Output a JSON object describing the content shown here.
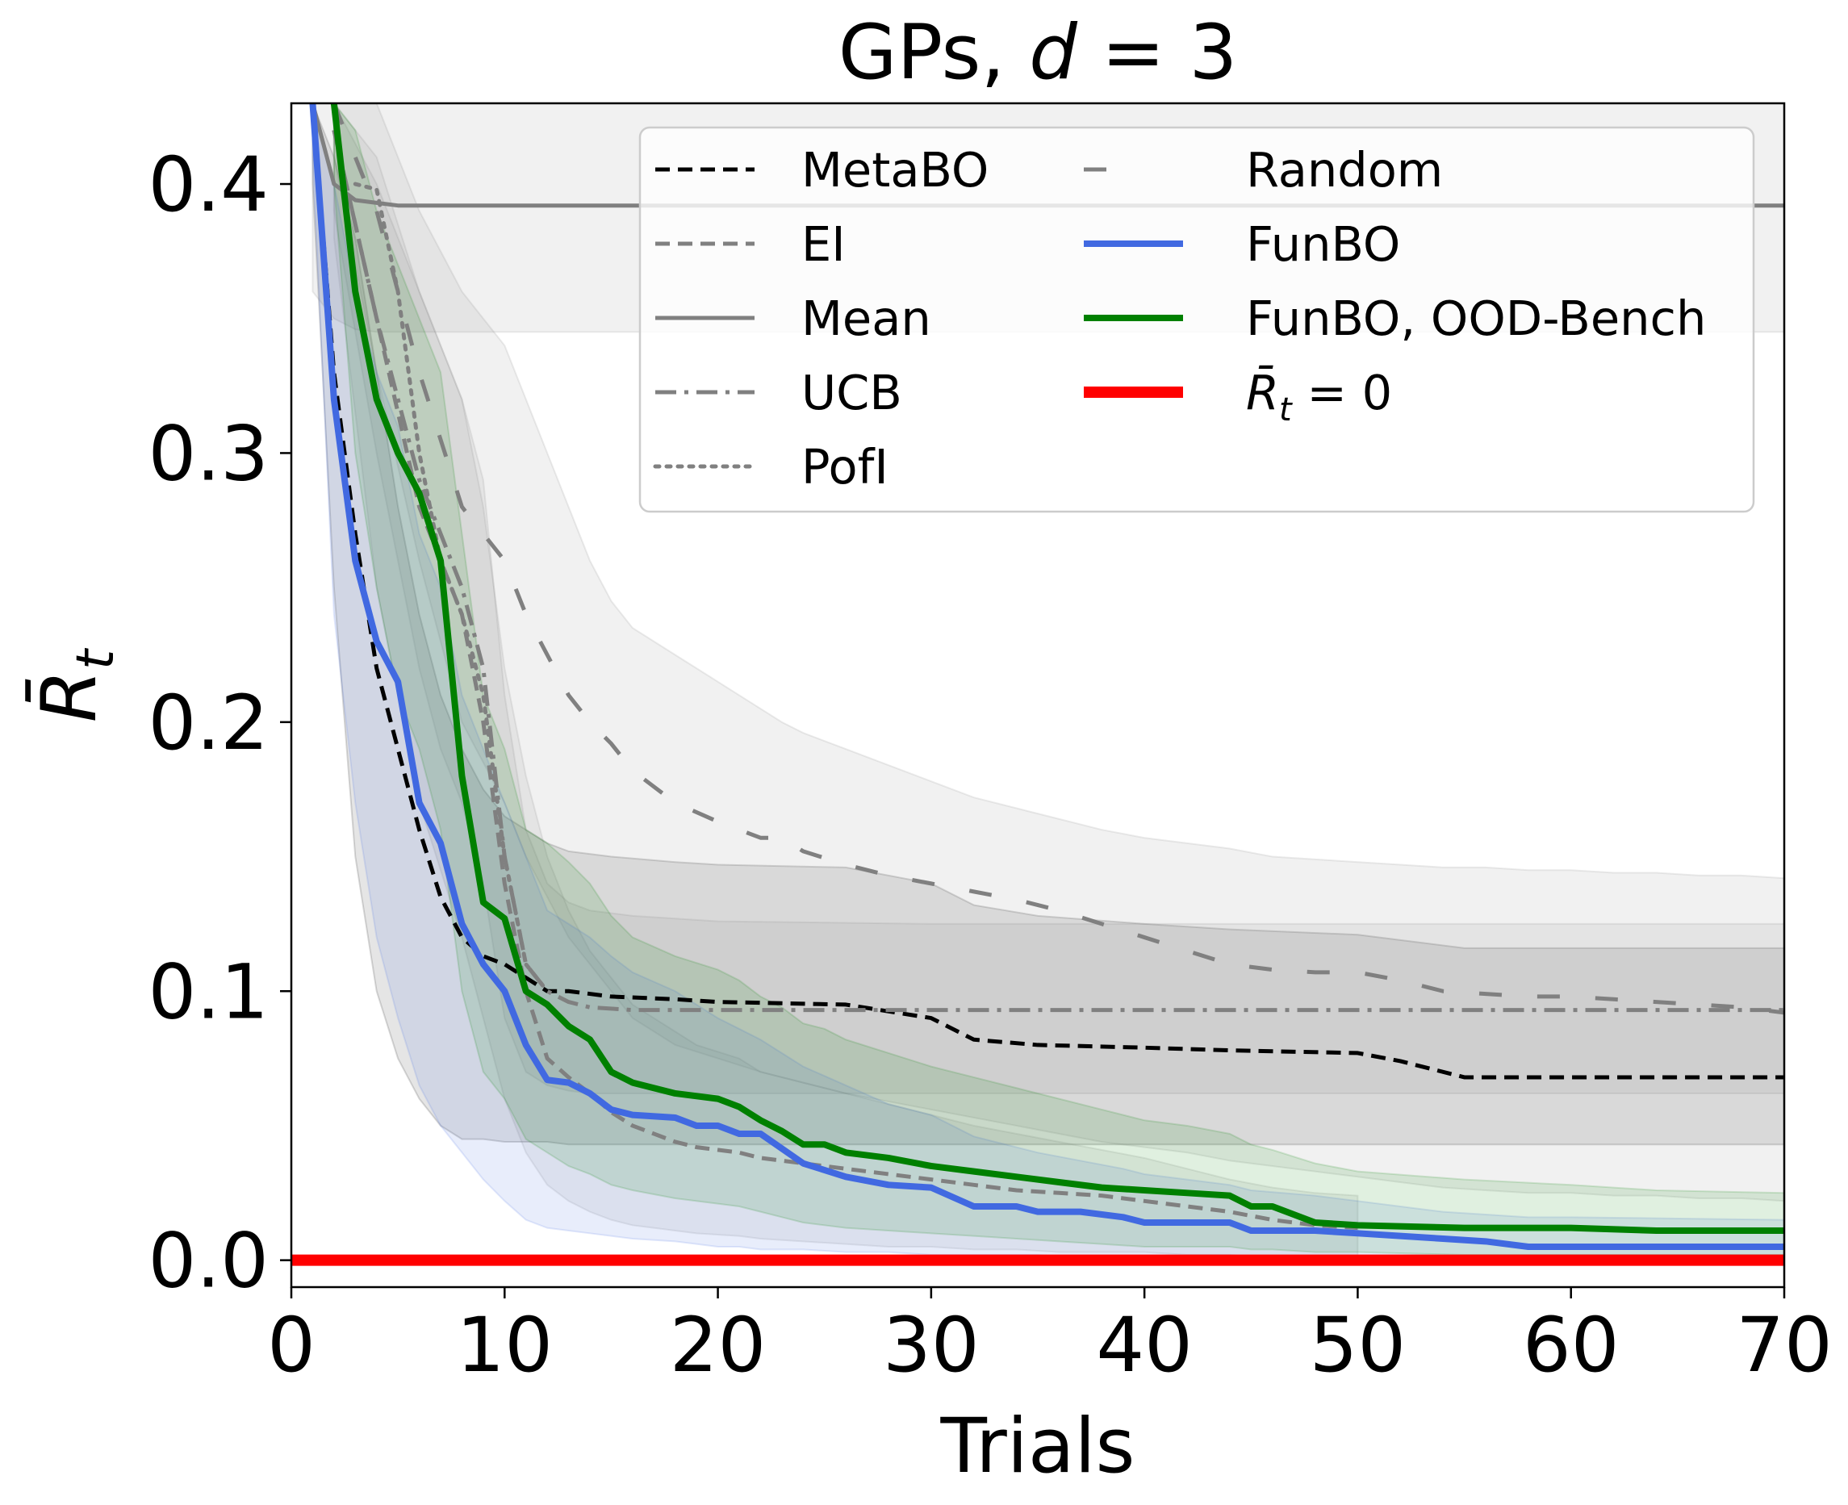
{
  "chart_data": {
    "type": "line",
    "title": "GPs, d = 3",
    "title_parts": {
      "prefix": "GPs, ",
      "var": "d",
      "rest": " = 3"
    },
    "xlabel": "Trials",
    "ylabel": "R̄",
    "ylabel_subscript": "t",
    "xlim": [
      0,
      70
    ],
    "ylim": [
      -0.01,
      0.43
    ],
    "xticks": [
      0,
      10,
      20,
      30,
      40,
      50,
      60,
      70
    ],
    "yticks": [
      0.0,
      0.1,
      0.2,
      0.3,
      0.4
    ],
    "legend": {
      "placement": "upper-right",
      "columns": 2
    },
    "series": [
      {
        "name": "MetaBO",
        "color": "#000000",
        "style": "dashed",
        "width": "medium",
        "x": [
          1,
          2,
          3,
          4,
          5,
          6,
          7,
          8,
          9,
          10,
          11,
          12,
          13,
          15,
          18,
          20,
          26,
          30,
          32,
          35,
          40,
          44,
          50,
          52,
          55,
          60,
          70
        ],
        "values": [
          0.43,
          0.33,
          0.27,
          0.22,
          0.19,
          0.16,
          0.135,
          0.12,
          0.113,
          0.11,
          0.105,
          0.1,
          0.1,
          0.098,
          0.097,
          0.096,
          0.095,
          0.09,
          0.082,
          0.08,
          0.079,
          0.078,
          0.077,
          0.074,
          0.068,
          0.068,
          0.068
        ],
        "band_low": [
          0.4,
          0.25,
          0.15,
          0.1,
          0.075,
          0.06,
          0.05,
          0.045,
          0.045,
          0.044,
          0.044,
          0.044,
          0.043,
          0.043,
          0.043,
          0.043,
          0.043,
          0.043,
          0.043,
          0.043,
          0.043,
          0.043,
          0.043,
          0.043,
          0.043,
          0.043,
          0.043
        ],
        "band_high": [
          0.43,
          0.41,
          0.38,
          0.33,
          0.28,
          0.24,
          0.21,
          0.19,
          0.175,
          0.165,
          0.16,
          0.155,
          0.152,
          0.15,
          0.148,
          0.147,
          0.146,
          0.14,
          0.132,
          0.128,
          0.125,
          0.123,
          0.121,
          0.119,
          0.116,
          0.116,
          0.116
        ]
      },
      {
        "name": "EI",
        "color": "#808080",
        "style": "dashed",
        "width": "medium",
        "x": [
          2,
          4,
          6,
          8,
          9,
          10,
          11,
          12,
          13,
          14,
          15,
          16,
          17,
          18,
          19,
          21,
          22,
          24,
          26,
          28,
          30,
          32,
          34,
          36,
          38,
          40,
          42,
          44,
          46,
          48,
          50
        ],
        "values": [
          0.42,
          0.35,
          0.28,
          0.24,
          0.2,
          0.14,
          0.1,
          0.075,
          0.068,
          0.062,
          0.055,
          0.05,
          0.047,
          0.044,
          0.042,
          0.04,
          0.038,
          0.036,
          0.034,
          0.032,
          0.03,
          0.028,
          0.026,
          0.025,
          0.024,
          0.022,
          0.02,
          0.018,
          0.015,
          0.013,
          0.012
        ],
        "band_low": [
          0.38,
          0.25,
          0.17,
          0.12,
          0.09,
          0.06,
          0.04,
          0.028,
          0.022,
          0.018,
          0.015,
          0.013,
          0.012,
          0.011,
          0.01,
          0.009,
          0.008,
          0.007,
          0.006,
          0.005,
          0.005,
          0.004,
          0.004,
          0.003,
          0.003,
          0.003,
          0.002,
          0.002,
          0.001,
          0.001,
          0.001
        ],
        "band_high": [
          0.43,
          0.41,
          0.36,
          0.32,
          0.28,
          0.22,
          0.18,
          0.15,
          0.13,
          0.115,
          0.105,
          0.095,
          0.09,
          0.085,
          0.08,
          0.075,
          0.07,
          0.066,
          0.062,
          0.058,
          0.054,
          0.05,
          0.047,
          0.044,
          0.041,
          0.038,
          0.034,
          0.03,
          0.027,
          0.025,
          0.024
        ]
      },
      {
        "name": "Mean",
        "color": "#808080",
        "style": "solid",
        "width": "medium",
        "x": [
          1,
          2,
          3,
          4,
          5,
          10,
          20,
          40,
          60,
          70
        ],
        "values": [
          0.43,
          0.4,
          0.394,
          0.393,
          0.392,
          0.392,
          0.392,
          0.392,
          0.392,
          0.392
        ],
        "band_low": [
          0.36,
          0.35,
          0.346,
          0.345,
          0.345,
          0.345,
          0.345,
          0.345,
          0.345,
          0.345
        ],
        "band_high": [
          0.43,
          0.43,
          0.43,
          0.43,
          0.43,
          0.43,
          0.43,
          0.43,
          0.43,
          0.43
        ]
      },
      {
        "name": "UCB",
        "color": "#808080",
        "style": "dashdot",
        "width": "medium",
        "x": [
          2,
          4,
          6,
          7,
          8,
          9,
          10,
          11,
          12,
          13,
          14,
          16,
          20,
          30,
          40,
          50,
          60,
          70
        ],
        "values": [
          0.42,
          0.35,
          0.29,
          0.27,
          0.25,
          0.22,
          0.15,
          0.11,
          0.1,
          0.096,
          0.094,
          0.093,
          0.093,
          0.093,
          0.093,
          0.093,
          0.093,
          0.093
        ],
        "band_low": [
          0.39,
          0.3,
          0.22,
          0.19,
          0.17,
          0.14,
          0.09,
          0.07,
          0.065,
          0.063,
          0.062,
          0.062,
          0.062,
          0.062,
          0.062,
          0.062,
          0.062,
          0.062
        ],
        "band_high": [
          0.43,
          0.4,
          0.36,
          0.34,
          0.32,
          0.29,
          0.21,
          0.16,
          0.14,
          0.133,
          0.13,
          0.128,
          0.126,
          0.125,
          0.125,
          0.125,
          0.125,
          0.125
        ]
      },
      {
        "name": "PofI",
        "color": "#808080",
        "style": "dotted",
        "width": "medium",
        "x": [
          3,
          4,
          5,
          6,
          7,
          8,
          9,
          10,
          11,
          12
        ],
        "values": [
          0.4,
          0.398,
          0.36,
          0.3,
          0.26,
          0.24,
          0.21,
          0.15,
          0.11,
          0.1
        ],
        "band_low": [],
        "band_high": []
      },
      {
        "name": "Random",
        "color": "#808080",
        "style": "longdash",
        "width": "medium",
        "x": [
          2,
          4,
          6,
          8,
          10,
          11,
          12,
          13,
          14,
          15,
          16,
          18,
          20,
          22,
          23,
          24,
          26,
          28,
          30,
          32,
          34,
          36,
          38,
          40,
          42,
          44,
          46,
          48,
          50,
          52,
          54,
          56,
          58,
          60,
          62,
          64,
          66,
          68,
          70
        ],
        "values": [
          0.43,
          0.39,
          0.33,
          0.28,
          0.26,
          0.24,
          0.225,
          0.21,
          0.2,
          0.192,
          0.182,
          0.17,
          0.163,
          0.157,
          0.157,
          0.152,
          0.147,
          0.143,
          0.14,
          0.137,
          0.134,
          0.13,
          0.125,
          0.12,
          0.115,
          0.11,
          0.108,
          0.107,
          0.107,
          0.104,
          0.1,
          0.099,
          0.098,
          0.098,
          0.097,
          0.096,
          0.095,
          0.094,
          0.092
        ],
        "band_low": [
          0.41,
          0.33,
          0.26,
          0.2,
          0.17,
          0.15,
          0.135,
          0.12,
          0.11,
          0.1,
          0.09,
          0.08,
          0.075,
          0.07,
          0.068,
          0.066,
          0.062,
          0.059,
          0.056,
          0.053,
          0.05,
          0.047,
          0.044,
          0.042,
          0.04,
          0.037,
          0.035,
          0.033,
          0.031,
          0.029,
          0.027,
          0.026,
          0.025,
          0.025,
          0.024,
          0.024,
          0.023,
          0.023,
          0.022
        ],
        "band_high": [
          0.43,
          0.43,
          0.39,
          0.36,
          0.34,
          0.32,
          0.3,
          0.28,
          0.26,
          0.245,
          0.235,
          0.225,
          0.215,
          0.205,
          0.2,
          0.196,
          0.19,
          0.184,
          0.178,
          0.172,
          0.168,
          0.164,
          0.16,
          0.157,
          0.155,
          0.153,
          0.15,
          0.149,
          0.148,
          0.147,
          0.146,
          0.146,
          0.145,
          0.145,
          0.144,
          0.144,
          0.143,
          0.143,
          0.142
        ]
      },
      {
        "name": "FunBO",
        "color": "#4169E1",
        "style": "solid",
        "width": "thick",
        "x": [
          1,
          2,
          3,
          4,
          5,
          6,
          7,
          8,
          9,
          10,
          11,
          12,
          13,
          14,
          15,
          16,
          18,
          19,
          20,
          21,
          22,
          24,
          26,
          28,
          30,
          32,
          34,
          35,
          37,
          39,
          40,
          42,
          44,
          45,
          48,
          50,
          52,
          54,
          56,
          58,
          60,
          70
        ],
        "values": [
          0.43,
          0.32,
          0.26,
          0.23,
          0.215,
          0.17,
          0.155,
          0.125,
          0.11,
          0.1,
          0.08,
          0.067,
          0.066,
          0.062,
          0.056,
          0.054,
          0.053,
          0.05,
          0.05,
          0.047,
          0.047,
          0.036,
          0.031,
          0.028,
          0.027,
          0.02,
          0.02,
          0.018,
          0.018,
          0.016,
          0.014,
          0.014,
          0.014,
          0.011,
          0.011,
          0.01,
          0.009,
          0.008,
          0.007,
          0.005,
          0.005,
          0.005
        ],
        "band_low": [
          0.41,
          0.24,
          0.17,
          0.12,
          0.09,
          0.065,
          0.05,
          0.04,
          0.03,
          0.022,
          0.015,
          0.012,
          0.011,
          0.01,
          0.009,
          0.008,
          0.007,
          0.006,
          0.005,
          0.005,
          0.004,
          0.004,
          0.003,
          0.003,
          0.002,
          0.002,
          0.002,
          0.002,
          0.001,
          0.001,
          0.001,
          0.001,
          0.001,
          0.001,
          0.001,
          0.001,
          0.001,
          0.001,
          0.001,
          0.001,
          0.001,
          0.001
        ],
        "band_high": [
          0.43,
          0.4,
          0.36,
          0.33,
          0.31,
          0.27,
          0.25,
          0.21,
          0.19,
          0.17,
          0.15,
          0.13,
          0.125,
          0.12,
          0.113,
          0.107,
          0.1,
          0.095,
          0.09,
          0.086,
          0.082,
          0.072,
          0.065,
          0.058,
          0.054,
          0.046,
          0.042,
          0.04,
          0.037,
          0.034,
          0.032,
          0.03,
          0.028,
          0.026,
          0.024,
          0.022,
          0.02,
          0.018,
          0.017,
          0.016,
          0.016,
          0.015
        ]
      },
      {
        "name": "FunBO, OOD-Bench",
        "color": "#008000",
        "style": "solid",
        "width": "thick",
        "x": [
          2,
          3,
          4,
          5,
          6,
          7,
          8,
          9,
          10,
          11,
          12,
          13,
          14,
          15,
          16,
          18,
          20,
          21,
          22,
          23,
          24,
          25,
          26,
          28,
          30,
          32,
          34,
          36,
          38,
          40,
          42,
          44,
          45,
          46,
          48,
          50,
          55,
          60,
          64,
          70
        ],
        "values": [
          0.43,
          0.36,
          0.32,
          0.3,
          0.285,
          0.26,
          0.18,
          0.133,
          0.127,
          0.1,
          0.095,
          0.087,
          0.082,
          0.07,
          0.066,
          0.062,
          0.06,
          0.057,
          0.052,
          0.048,
          0.043,
          0.043,
          0.04,
          0.038,
          0.035,
          0.033,
          0.031,
          0.029,
          0.027,
          0.026,
          0.025,
          0.024,
          0.02,
          0.02,
          0.014,
          0.013,
          0.012,
          0.012,
          0.011,
          0.011
        ],
        "band_low": [
          0.4,
          0.3,
          0.25,
          0.21,
          0.19,
          0.16,
          0.1,
          0.07,
          0.06,
          0.045,
          0.04,
          0.035,
          0.032,
          0.028,
          0.026,
          0.023,
          0.021,
          0.02,
          0.018,
          0.016,
          0.014,
          0.013,
          0.012,
          0.011,
          0.01,
          0.009,
          0.008,
          0.007,
          0.006,
          0.005,
          0.005,
          0.005,
          0.004,
          0.004,
          0.003,
          0.003,
          0.002,
          0.002,
          0.002,
          0.002
        ],
        "band_high": [
          0.43,
          0.42,
          0.39,
          0.37,
          0.35,
          0.33,
          0.27,
          0.21,
          0.19,
          0.16,
          0.155,
          0.148,
          0.14,
          0.128,
          0.12,
          0.113,
          0.108,
          0.104,
          0.098,
          0.094,
          0.088,
          0.086,
          0.082,
          0.077,
          0.072,
          0.068,
          0.064,
          0.06,
          0.056,
          0.052,
          0.05,
          0.047,
          0.043,
          0.041,
          0.036,
          0.033,
          0.03,
          0.028,
          0.026,
          0.025
        ]
      },
      {
        "name": "R̄",
        "name_subscript": "t",
        "name_suffix": " = 0",
        "color": "#FF0000",
        "style": "solid",
        "width": "extra-thick",
        "x": [
          0,
          70
        ],
        "values": [
          0.0,
          0.0
        ],
        "band_low": [],
        "band_high": []
      }
    ]
  }
}
